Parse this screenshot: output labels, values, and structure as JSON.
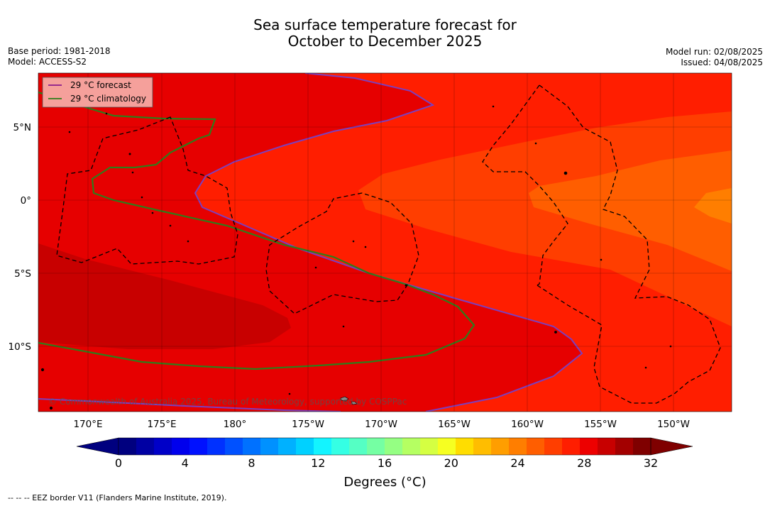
{
  "title_line1": "Sea surface temperature forecast for",
  "title_line2": "October to December 2025",
  "base_period": "Base period: 1981-2018",
  "model": "Model: ACCESS-S2",
  "model_run": "Model run: 02/08/2025",
  "issued": "Issued: 04/08/2025",
  "legend": {
    "forecast": "29 °C  forecast",
    "climatology": "29 °C  climatology",
    "forecast_color": "#8b1a8b",
    "climatology_color": "#2e7d1a"
  },
  "copyright": "© Commonwealth of Australia 2025, Bureau of Meteorology, supported by COSPPac",
  "longitude_labels": [
    "170°E",
    "175°E",
    "180°",
    "175°W",
    "170°W",
    "165°W",
    "160°W",
    "155°W",
    "150°W"
  ],
  "latitude_labels": [
    "5°N",
    "0°",
    "5°S",
    "10°S"
  ],
  "colorbar": {
    "tick_labels": [
      "0",
      "4",
      "8",
      "12",
      "16",
      "20",
      "24",
      "28",
      "32"
    ],
    "label": "Degrees (°C)",
    "colors": [
      "#00007f",
      "#0000a3",
      "#0000c8",
      "#0000ed",
      "#0011ff",
      "#0031ff",
      "#0051ff",
      "#0071ff",
      "#0091ff",
      "#00b1ff",
      "#00d1ff",
      "#13f4ff",
      "#35ffe4",
      "#55ffc4",
      "#75ffa3",
      "#95ff83",
      "#b5ff62",
      "#d5ff42",
      "#f6ff21",
      "#ffdd00",
      "#ffbd00",
      "#ff9e00",
      "#ff7e00",
      "#ff5e00",
      "#ff3e00",
      "#ff1e00",
      "#ed0000",
      "#c80000",
      "#a30000",
      "#7f0000"
    ]
  },
  "footnote": "--  --  -- EEZ border V11 (Flanders Marine Institute, 2019)."
}
